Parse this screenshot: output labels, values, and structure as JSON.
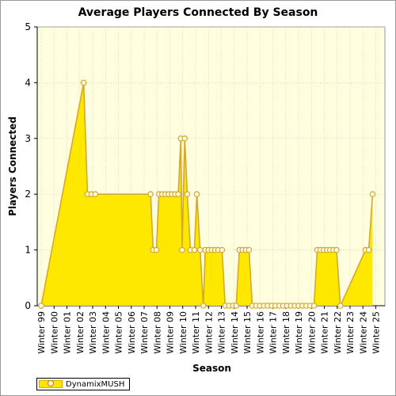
{
  "chart_data": {
    "type": "area",
    "title": "Average Players Connected By Season",
    "xlabel": "Season",
    "ylabel": "Players Connected",
    "ylim": [
      0,
      5
    ],
    "yticks": [
      "0",
      "1",
      "2",
      "3",
      "4",
      "5"
    ],
    "grid": true,
    "legend_placement": "bottom-left",
    "categories": [
      "Winter 99",
      "Winter 00",
      "Winter 01",
      "Winter 02",
      "Winter 03",
      "Winter 04",
      "Winter 05",
      "Winter 06",
      "Winter 07",
      "Winter 08",
      "Winter 09",
      "Winter 10",
      "Winter 11",
      "Winter 12",
      "Winter 13",
      "Winter 14",
      "Winter 15",
      "Winter 16",
      "Winter 17",
      "Winter 18",
      "Winter 19",
      "Winter 20",
      "Winter 21",
      "Winter 22",
      "Winter 23",
      "Winter 24",
      "Winter 25"
    ],
    "series": [
      {
        "name": "DynamixMUSH",
        "points": [
          [
            0.0,
            0
          ],
          [
            3.3,
            4
          ],
          [
            3.6,
            2
          ],
          [
            3.9,
            2
          ],
          [
            4.2,
            2
          ],
          [
            8.5,
            2
          ],
          [
            8.7,
            1
          ],
          [
            8.95,
            1
          ],
          [
            9.15,
            2
          ],
          [
            9.4,
            2
          ],
          [
            9.65,
            2
          ],
          [
            9.9,
            2
          ],
          [
            10.15,
            2
          ],
          [
            10.4,
            2
          ],
          [
            10.65,
            2
          ],
          [
            10.85,
            3
          ],
          [
            10.95,
            1
          ],
          [
            11.15,
            3
          ],
          [
            11.35,
            2
          ],
          [
            11.6,
            1
          ],
          [
            11.9,
            1
          ],
          [
            12.1,
            2
          ],
          [
            12.35,
            1
          ],
          [
            12.6,
            0
          ],
          [
            12.75,
            1
          ],
          [
            13.0,
            1
          ],
          [
            13.25,
            1
          ],
          [
            13.5,
            1
          ],
          [
            13.75,
            1
          ],
          [
            14.05,
            1
          ],
          [
            14.3,
            0
          ],
          [
            14.6,
            0
          ],
          [
            14.9,
            0
          ],
          [
            15.15,
            0
          ],
          [
            15.4,
            1
          ],
          [
            15.65,
            1
          ],
          [
            15.9,
            1
          ],
          [
            16.15,
            1
          ],
          [
            16.4,
            0
          ],
          [
            16.7,
            0
          ],
          [
            17.0,
            0
          ],
          [
            17.3,
            0
          ],
          [
            17.6,
            0
          ],
          [
            17.9,
            0
          ],
          [
            18.2,
            0
          ],
          [
            18.5,
            0
          ],
          [
            18.8,
            0
          ],
          [
            19.1,
            0
          ],
          [
            19.4,
            0
          ],
          [
            19.7,
            0
          ],
          [
            20.0,
            0
          ],
          [
            20.3,
            0
          ],
          [
            20.6,
            0
          ],
          [
            20.9,
            0
          ],
          [
            21.2,
            0
          ],
          [
            21.45,
            1
          ],
          [
            21.7,
            1
          ],
          [
            21.95,
            1
          ],
          [
            22.2,
            1
          ],
          [
            22.45,
            1
          ],
          [
            22.7,
            1
          ],
          [
            22.95,
            1
          ],
          [
            23.25,
            0
          ],
          [
            25.2,
            1
          ],
          [
            25.45,
            1
          ],
          [
            25.75,
            2
          ]
        ]
      }
    ],
    "colors": {
      "plot_background": "#ffffe0",
      "area_fill": "#ffe800",
      "line": "#d5a82c",
      "marker_fill": "#fffbe0",
      "grid": "#c8c8a0"
    }
  }
}
